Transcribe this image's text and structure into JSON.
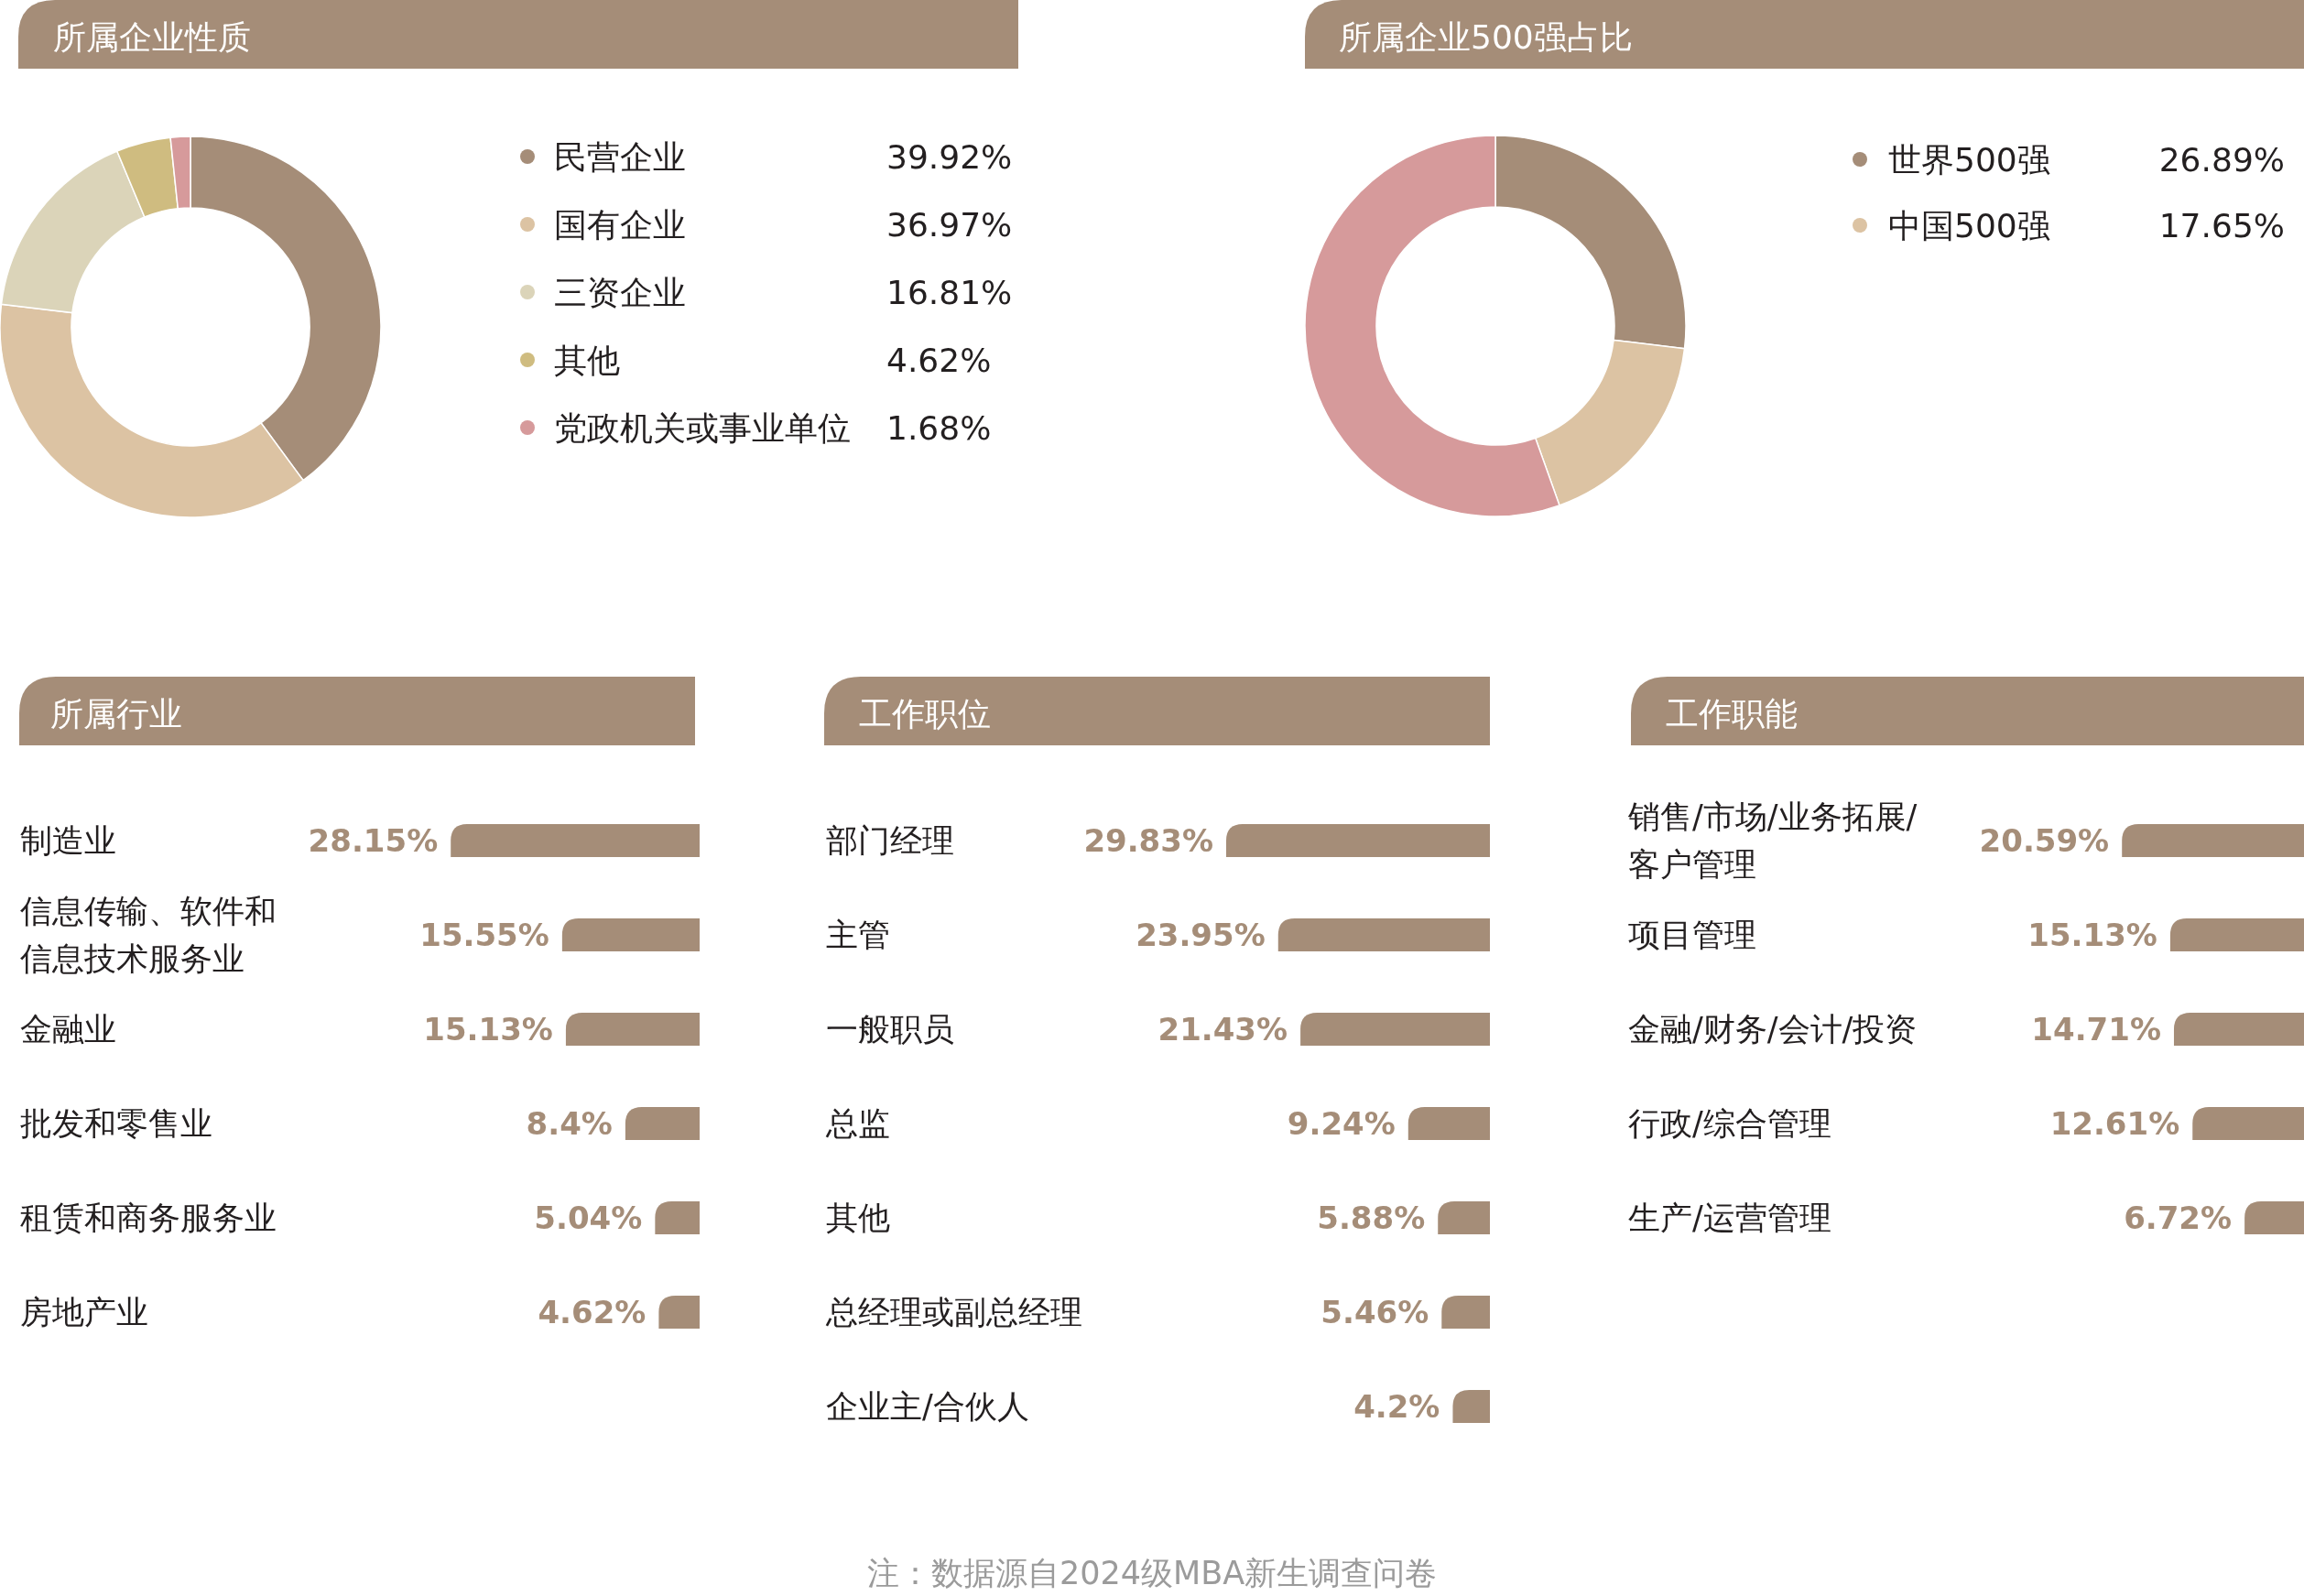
{
  "chart_data": [
    {
      "type": "donut",
      "title": "所属企业性质",
      "categories": [
        "民营企业",
        "国有企业",
        "三资企业",
        "其他",
        "党政机关或事业单位"
      ],
      "values": [
        39.92,
        36.97,
        16.81,
        4.62,
        1.68
      ],
      "colors": [
        "#a58d78",
        "#dcc3a3",
        "#dbd4b9",
        "#cfbc80",
        "#d69a9b"
      ],
      "value_labels": [
        "39.92%",
        "36.97%",
        "16.81%",
        "4.62%",
        "1.68%"
      ],
      "legend": "right"
    },
    {
      "type": "donut",
      "title": "所属企业500强占比",
      "categories": [
        "世界500强",
        "中国500强",
        null
      ],
      "values": [
        26.89,
        17.65,
        55.46
      ],
      "colors": [
        "#a58d78",
        "#dcc3a3",
        "#d69a9b"
      ],
      "value_labels": [
        "26.89%",
        "17.65%",
        null
      ],
      "legend": "right"
    },
    {
      "type": "bar",
      "orientation": "horizontal",
      "title": "所属行业",
      "categories": [
        "制造业",
        "信息传输、软件和信息技术服务业",
        "金融业",
        "批发和零售业",
        "租赁和商务服务业",
        "房地产业"
      ],
      "values": [
        28.15,
        15.55,
        15.13,
        8.4,
        5.04,
        4.62
      ],
      "color": "#a58d78",
      "value_labels": [
        "28.15%",
        "15.55%",
        "15.13%",
        "8.4%",
        "5.04%",
        "4.62%"
      ]
    },
    {
      "type": "bar",
      "orientation": "horizontal",
      "title": "工作职位",
      "categories": [
        "部门经理",
        "主管",
        "一般职员",
        "总监",
        "其他",
        "总经理或副总经理",
        "企业主/合伙人"
      ],
      "values": [
        29.83,
        23.95,
        21.43,
        9.24,
        5.88,
        5.46,
        4.2
      ],
      "color": "#a58d78",
      "value_labels": [
        "29.83%",
        "23.95%",
        "21.43%",
        "9.24%",
        "5.88%",
        "5.46%",
        "4.2%"
      ]
    },
    {
      "type": "bar",
      "orientation": "horizontal",
      "title": "工作职能",
      "categories": [
        "销售/市场/业务拓展/客户管理",
        "项目管理",
        "金融/财务/会计/投资",
        "行政/综合管理",
        "生产/运营管理"
      ],
      "values": [
        20.59,
        15.13,
        14.71,
        12.61,
        6.72
      ],
      "color": "#a58d78",
      "value_labels": [
        "20.59%",
        "15.13%",
        "14.71%",
        "12.61%",
        "6.72%"
      ],
      "annotations": [
        "注：数据源自2024级MBA新生调查问卷"
      ]
    }
  ]
}
